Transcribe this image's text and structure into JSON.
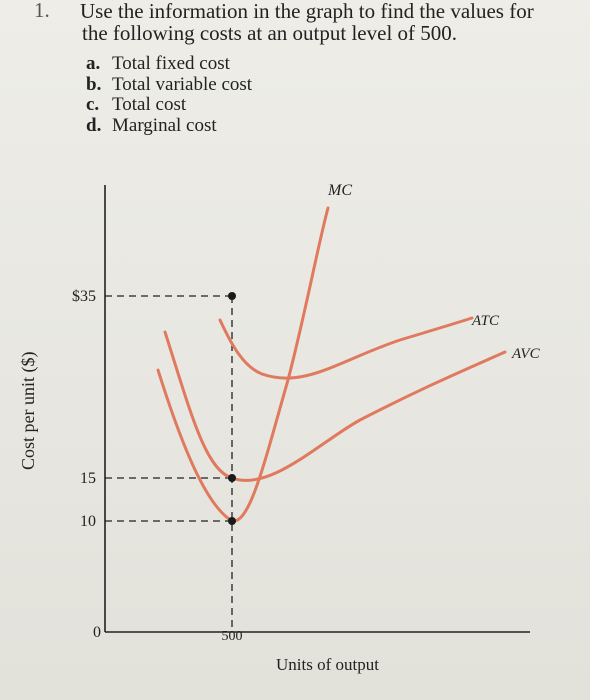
{
  "question": {
    "number": "1.",
    "prompt_line1": "Use the information in the graph to find the values for",
    "prompt_line2": "the following costs at an output level of 500.",
    "items": [
      {
        "letter": "a.",
        "text": "Total fixed cost"
      },
      {
        "letter": "b.",
        "text": "Total variable cost"
      },
      {
        "letter": "c.",
        "text": "Total cost"
      },
      {
        "letter": "d.",
        "text": "Marginal cost"
      }
    ]
  },
  "graph": {
    "ylabel": "Cost per unit ($)",
    "xlabel": "Units of output",
    "y_ticks": [
      "$35",
      "15",
      "10"
    ],
    "x_ticks": [
      "0",
      "500"
    ],
    "curve_labels": {
      "mc": "MC",
      "atc": "ATC",
      "avc": "AVC"
    },
    "curve_color": "#e07a5f"
  }
}
